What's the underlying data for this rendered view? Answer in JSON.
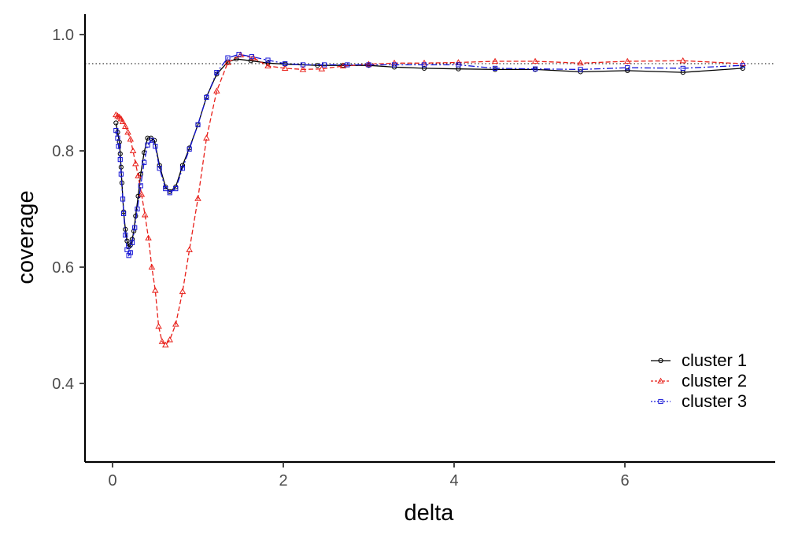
{
  "chart_data": {
    "type": "line",
    "xlabel": "delta",
    "ylabel": "coverage",
    "xlim": [
      -0.3,
      7.75
    ],
    "ylim": [
      0.265,
      1.035
    ],
    "x_ticks": [
      0,
      2,
      4,
      6
    ],
    "x_tick_labels": [
      "0",
      "2",
      "4",
      "6"
    ],
    "y_ticks": [
      0.4,
      0.6,
      0.8,
      1.0
    ],
    "y_tick_labels": [
      "0.4",
      "0.6",
      "0.8",
      "1.0"
    ],
    "reference_line": {
      "y": 0.95,
      "style": "dotted"
    },
    "grid": false,
    "legend_position": "bottom-right",
    "series": [
      {
        "name": "cluster 1",
        "color": "#000000",
        "marker": "circle",
        "dash": "solid",
        "points": [
          [
            0.04,
            0.848
          ],
          [
            0.06,
            0.832
          ],
          [
            0.08,
            0.815
          ],
          [
            0.09,
            0.795
          ],
          [
            0.1,
            0.772
          ],
          [
            0.11,
            0.745
          ],
          [
            0.13,
            0.695
          ],
          [
            0.15,
            0.665
          ],
          [
            0.17,
            0.645
          ],
          [
            0.19,
            0.635
          ],
          [
            0.21,
            0.638
          ],
          [
            0.23,
            0.648
          ],
          [
            0.25,
            0.662
          ],
          [
            0.27,
            0.688
          ],
          [
            0.3,
            0.722
          ],
          [
            0.33,
            0.76
          ],
          [
            0.37,
            0.797
          ],
          [
            0.41,
            0.822
          ],
          [
            0.45,
            0.822
          ],
          [
            0.49,
            0.818
          ],
          [
            0.55,
            0.775
          ],
          [
            0.62,
            0.738
          ],
          [
            0.67,
            0.73
          ],
          [
            0.74,
            0.738
          ],
          [
            0.82,
            0.775
          ],
          [
            0.9,
            0.805
          ],
          [
            1.0,
            0.845
          ],
          [
            1.1,
            0.893
          ],
          [
            1.22,
            0.932
          ],
          [
            1.35,
            0.953
          ],
          [
            1.45,
            0.958
          ],
          [
            1.62,
            0.955
          ],
          [
            1.82,
            0.951
          ],
          [
            2.02,
            0.949
          ],
          [
            2.4,
            0.947
          ],
          [
            2.7,
            0.947
          ],
          [
            3.0,
            0.947
          ],
          [
            3.3,
            0.944
          ],
          [
            3.65,
            0.942
          ],
          [
            4.05,
            0.941
          ],
          [
            4.48,
            0.94
          ],
          [
            4.95,
            0.94
          ],
          [
            5.48,
            0.936
          ],
          [
            6.03,
            0.938
          ],
          [
            6.68,
            0.935
          ],
          [
            7.38,
            0.942
          ]
        ]
      },
      {
        "name": "cluster 2",
        "color": "#e8201a",
        "marker": "triangle",
        "dash": "dashed",
        "points": [
          [
            0.04,
            0.862
          ],
          [
            0.06,
            0.86
          ],
          [
            0.08,
            0.858
          ],
          [
            0.1,
            0.855
          ],
          [
            0.12,
            0.85
          ],
          [
            0.15,
            0.842
          ],
          [
            0.18,
            0.832
          ],
          [
            0.21,
            0.82
          ],
          [
            0.24,
            0.8
          ],
          [
            0.27,
            0.778
          ],
          [
            0.3,
            0.757
          ],
          [
            0.34,
            0.725
          ],
          [
            0.38,
            0.69
          ],
          [
            0.42,
            0.65
          ],
          [
            0.46,
            0.6
          ],
          [
            0.5,
            0.56
          ],
          [
            0.54,
            0.498
          ],
          [
            0.58,
            0.472
          ],
          [
            0.62,
            0.466
          ],
          [
            0.67,
            0.475
          ],
          [
            0.74,
            0.502
          ],
          [
            0.82,
            0.558
          ],
          [
            0.9,
            0.63
          ],
          [
            1.0,
            0.718
          ],
          [
            1.1,
            0.822
          ],
          [
            1.22,
            0.903
          ],
          [
            1.35,
            0.952
          ],
          [
            1.5,
            0.965
          ],
          [
            1.65,
            0.96
          ],
          [
            1.82,
            0.946
          ],
          [
            2.02,
            0.942
          ],
          [
            2.23,
            0.94
          ],
          [
            2.45,
            0.941
          ],
          [
            2.7,
            0.946
          ],
          [
            3.0,
            0.949
          ],
          [
            3.3,
            0.951
          ],
          [
            3.65,
            0.951
          ],
          [
            4.05,
            0.952
          ],
          [
            4.48,
            0.954
          ],
          [
            4.95,
            0.954
          ],
          [
            5.48,
            0.951
          ],
          [
            6.03,
            0.954
          ],
          [
            6.68,
            0.955
          ],
          [
            7.38,
            0.95
          ]
        ]
      },
      {
        "name": "cluster 3",
        "color": "#1616d6",
        "marker": "square",
        "dash": "dashdot",
        "points": [
          [
            0.04,
            0.835
          ],
          [
            0.06,
            0.822
          ],
          [
            0.07,
            0.808
          ],
          [
            0.09,
            0.785
          ],
          [
            0.1,
            0.76
          ],
          [
            0.12,
            0.717
          ],
          [
            0.13,
            0.692
          ],
          [
            0.15,
            0.655
          ],
          [
            0.17,
            0.63
          ],
          [
            0.19,
            0.62
          ],
          [
            0.21,
            0.625
          ],
          [
            0.23,
            0.642
          ],
          [
            0.26,
            0.668
          ],
          [
            0.29,
            0.7
          ],
          [
            0.33,
            0.74
          ],
          [
            0.37,
            0.78
          ],
          [
            0.41,
            0.81
          ],
          [
            0.46,
            0.818
          ],
          [
            0.5,
            0.808
          ],
          [
            0.55,
            0.77
          ],
          [
            0.62,
            0.735
          ],
          [
            0.67,
            0.728
          ],
          [
            0.74,
            0.735
          ],
          [
            0.82,
            0.77
          ],
          [
            0.9,
            0.803
          ],
          [
            1.0,
            0.845
          ],
          [
            1.1,
            0.892
          ],
          [
            1.22,
            0.935
          ],
          [
            1.35,
            0.96
          ],
          [
            1.48,
            0.966
          ],
          [
            1.63,
            0.962
          ],
          [
            1.82,
            0.956
          ],
          [
            2.02,
            0.95
          ],
          [
            2.23,
            0.948
          ],
          [
            2.48,
            0.948
          ],
          [
            2.75,
            0.948
          ],
          [
            3.0,
            0.948
          ],
          [
            3.3,
            0.948
          ],
          [
            3.65,
            0.948
          ],
          [
            4.05,
            0.948
          ],
          [
            4.48,
            0.942
          ],
          [
            4.95,
            0.941
          ],
          [
            5.48,
            0.94
          ],
          [
            6.03,
            0.943
          ],
          [
            6.68,
            0.942
          ],
          [
            7.38,
            0.947
          ]
        ]
      }
    ]
  }
}
